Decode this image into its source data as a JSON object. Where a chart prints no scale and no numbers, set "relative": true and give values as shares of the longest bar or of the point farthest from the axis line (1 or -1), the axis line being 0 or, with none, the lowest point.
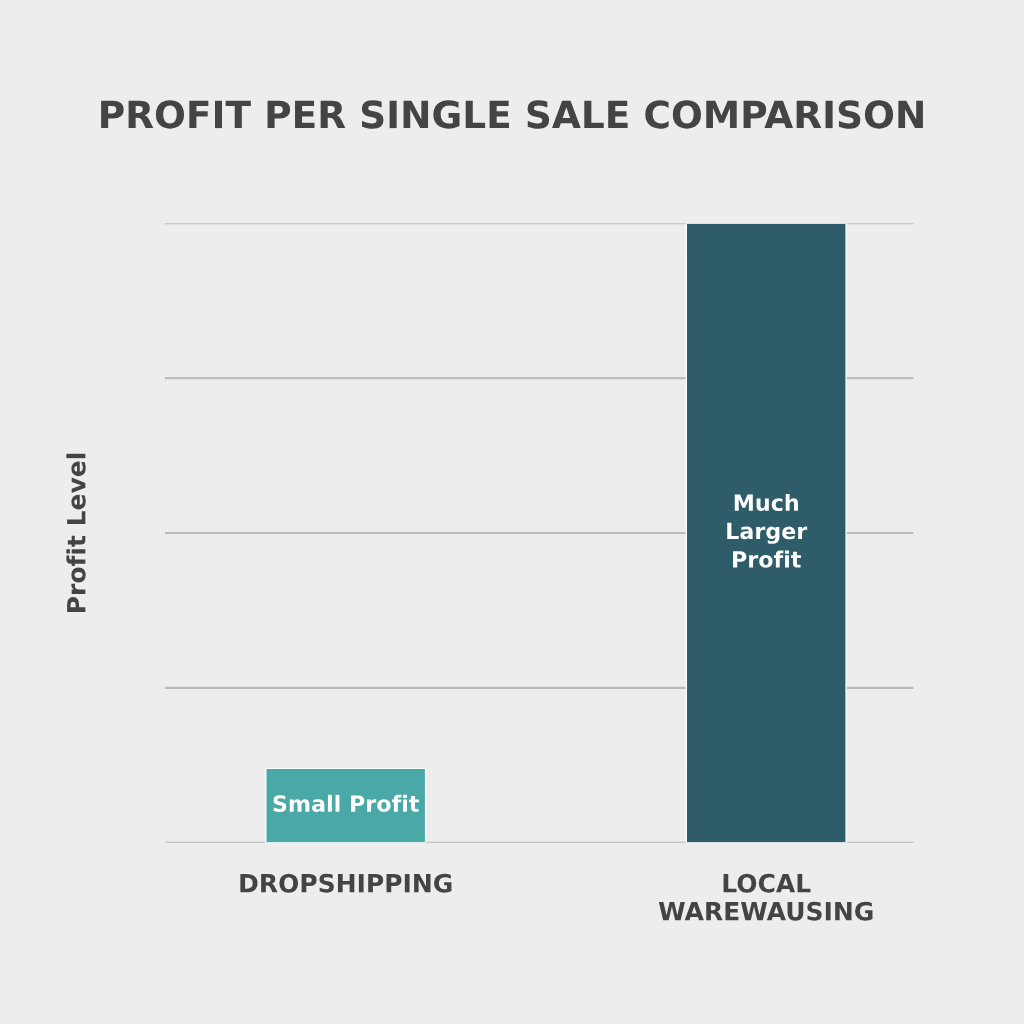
{
  "chart_data": {
    "type": "bar",
    "title": "PROFIT PER SINGLE SALE COMPARISON",
    "ylabel": "Profit Level",
    "categories": [
      "DROPSHIPPING",
      "LOCAL\nWAREWAUSING"
    ],
    "values": [
      0.12,
      1
    ],
    "colors": [
      "#4aa9a6",
      "#2e5c68"
    ],
    "annotations": [
      "Small Profit",
      "Much\nLarger\nProfit"
    ],
    "relative": true,
    "grid": "y"
  }
}
